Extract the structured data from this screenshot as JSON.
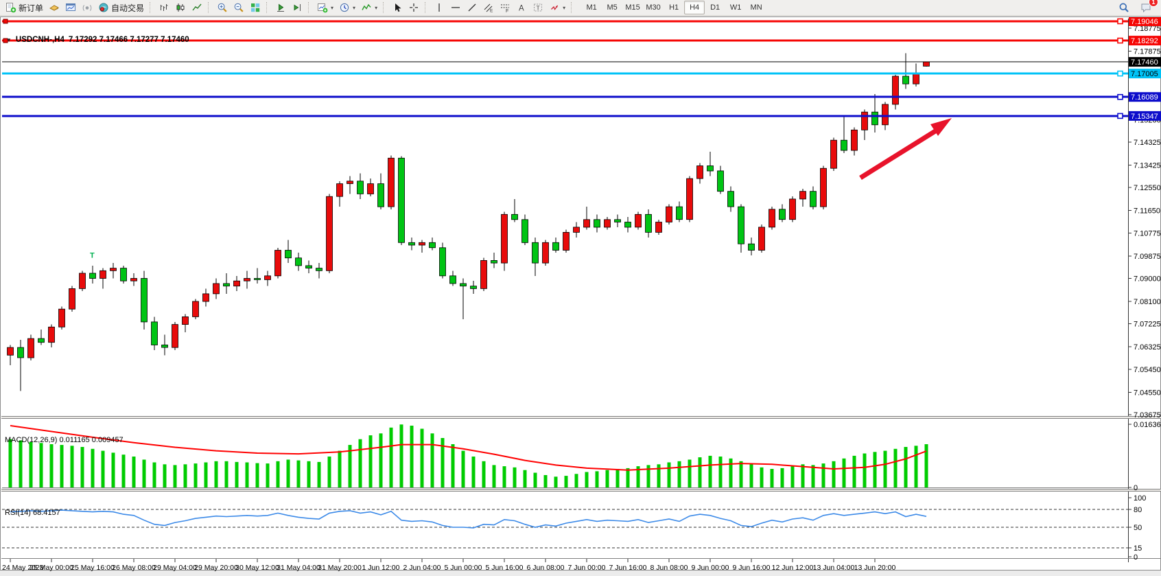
{
  "toolbar": {
    "groups": [
      {
        "name": "trade",
        "items": [
          {
            "name": "new-order",
            "icon": "new-order",
            "label": "新订单"
          },
          {
            "name": "profiles",
            "icon": "profiles"
          },
          {
            "name": "chart-window",
            "icon": "chart-window"
          },
          {
            "name": "signals",
            "icon": "signals"
          },
          {
            "name": "auto-trading",
            "icon": "auto-trading",
            "label": "自动交易"
          }
        ]
      },
      {
        "name": "chart-type",
        "items": [
          {
            "name": "bar-chart",
            "icon": "bar-chart"
          },
          {
            "name": "candlestick-chart",
            "icon": "candlestick-chart"
          },
          {
            "name": "line-chart",
            "icon": "line-chart"
          }
        ]
      },
      {
        "name": "zoom",
        "items": [
          {
            "name": "zoom-in",
            "icon": "zoom-in"
          },
          {
            "name": "zoom-out",
            "icon": "zoom-out"
          },
          {
            "name": "tile-windows",
            "icon": "tile-windows"
          }
        ]
      },
      {
        "name": "scroll",
        "items": [
          {
            "name": "auto-scroll",
            "icon": "auto-scroll"
          },
          {
            "name": "chart-shift",
            "icon": "chart-shift"
          }
        ]
      },
      {
        "name": "new-objects",
        "items": [
          {
            "name": "new-chart",
            "icon": "new-chart",
            "dropdown": true
          },
          {
            "name": "period-selector",
            "icon": "periods",
            "dropdown": true
          },
          {
            "name": "indicators-list",
            "icon": "indicators",
            "dropdown": true
          }
        ]
      },
      {
        "name": "pointer",
        "items": [
          {
            "name": "cursor",
            "icon": "cursor"
          },
          {
            "name": "crosshair",
            "icon": "crosshair"
          }
        ]
      },
      {
        "name": "drawing",
        "items": [
          {
            "name": "vertical-line",
            "icon": "vline"
          },
          {
            "name": "horizontal-line",
            "icon": "hline"
          },
          {
            "name": "trend-line",
            "icon": "trendline"
          },
          {
            "name": "equidistant-channel",
            "icon": "channel"
          },
          {
            "name": "fibonacci-retracement",
            "icon": "fibonacci"
          },
          {
            "name": "text",
            "icon": "text"
          },
          {
            "name": "text-label",
            "icon": "text-label"
          },
          {
            "name": "arrows",
            "icon": "arrows",
            "dropdown": true
          }
        ]
      }
    ],
    "timeframes": [
      "M1",
      "M5",
      "M15",
      "M30",
      "H1",
      "H4",
      "D1",
      "W1",
      "MN"
    ],
    "active_timeframe": "H4",
    "notification_badge": "1"
  },
  "chart": {
    "title_symbol": "USDCNH-,H4",
    "title_ohlc": "7.17292 7.17466 7.17277 7.17460",
    "bid_price": "7.17460",
    "up_color": "#e80b0b",
    "down_color": "#00c414",
    "hlines": [
      {
        "price": 7.19046,
        "label": "7.19046",
        "color": "#f60604",
        "text_color": "#ffffff",
        "handles": "both"
      },
      {
        "price": 7.18292,
        "label": "7.18292",
        "color": "#f60604",
        "text_color": "#ffffff",
        "handles": "both"
      },
      {
        "price": 7.17005,
        "label": "7.17005",
        "color": "#00c3f7",
        "text_color": "#000000",
        "handles": "right"
      },
      {
        "price": 7.16089,
        "label": "7.16089",
        "color": "#0d0dcb",
        "text_color": "#ffffff",
        "handles": "right"
      },
      {
        "price": 7.15347,
        "label": "7.15347",
        "color": "#0d0dcb",
        "text_color": "#ffffff",
        "handles": "right"
      }
    ],
    "price_ticks": [
      "7.18775",
      "7.17875",
      "7.15200",
      "7.14325",
      "7.13425",
      "7.12550",
      "7.11650",
      "7.10775",
      "7.09875",
      "7.09000",
      "7.08100",
      "7.07225",
      "7.06325",
      "7.05450",
      "7.04550",
      "7.03675"
    ],
    "time_ticks": [
      "24 May 2023",
      "25 May 00:00",
      "25 May 16:00",
      "26 May 08:00",
      "29 May 04:00",
      "29 May 20:00",
      "30 May 12:00",
      "31 May 04:00",
      "31 May 20:00",
      "1 Jun 12:00",
      "2 Jun 04:00",
      "5 Jun 00:00",
      "5 Jun 16:00",
      "6 Jun 08:00",
      "7 Jun 00:00",
      "7 Jun 16:00",
      "8 Jun 08:00",
      "9 Jun 00:00",
      "9 Jun 16:00",
      "12 Jun 12:00",
      "13 Jun 04:00",
      "13 Jun 20:00"
    ],
    "annotations": {
      "t_marker": {
        "text": "T",
        "color": "#00b050"
      },
      "trend_arrow": {
        "color": "#e8132b",
        "direction": "up-right",
        "points_to_price": 7.15347
      }
    }
  },
  "chart_data": {
    "type": "candlestick",
    "symbol": "USDCNH-",
    "timeframe": "H4",
    "color_convention": "red = bullish, green = bearish",
    "current_bar": {
      "open": "7.17292",
      "high": "7.17466",
      "low": "7.17277",
      "close": "7.17460"
    },
    "candles": [
      [
        7.06,
        7.064,
        7.056,
        7.063
      ],
      [
        7.063,
        7.066,
        7.046,
        7.059
      ],
      [
        7.059,
        7.068,
        7.058,
        7.0665
      ],
      [
        7.0665,
        7.07,
        7.064,
        7.065
      ],
      [
        7.065,
        7.072,
        7.063,
        7.071
      ],
      [
        7.071,
        7.079,
        7.07,
        7.078
      ],
      [
        7.078,
        7.087,
        7.077,
        7.086
      ],
      [
        7.086,
        7.093,
        7.085,
        7.092
      ],
      [
        7.092,
        7.095,
        7.088,
        7.09
      ],
      [
        7.09,
        7.094,
        7.086,
        7.093
      ],
      [
        7.093,
        7.096,
        7.09,
        7.094
      ],
      [
        7.094,
        7.095,
        7.088,
        7.089
      ],
      [
        7.089,
        7.092,
        7.087,
        7.09
      ],
      [
        7.09,
        7.093,
        7.07,
        7.073
      ],
      [
        7.073,
        7.075,
        7.062,
        7.064
      ],
      [
        7.064,
        7.068,
        7.06,
        7.063
      ],
      [
        7.063,
        7.073,
        7.062,
        7.072
      ],
      [
        7.072,
        7.076,
        7.069,
        7.075
      ],
      [
        7.075,
        7.082,
        7.074,
        7.081
      ],
      [
        7.081,
        7.086,
        7.079,
        7.084
      ],
      [
        7.084,
        7.09,
        7.082,
        7.088
      ],
      [
        7.088,
        7.092,
        7.084,
        7.087
      ],
      [
        7.087,
        7.091,
        7.085,
        7.089
      ],
      [
        7.089,
        7.093,
        7.086,
        7.09
      ],
      [
        7.09,
        7.094,
        7.088,
        7.0895
      ],
      [
        7.0895,
        7.093,
        7.087,
        7.091
      ],
      [
        7.091,
        7.102,
        7.09,
        7.101
      ],
      [
        7.101,
        7.105,
        7.096,
        7.098
      ],
      [
        7.098,
        7.1,
        7.093,
        7.095
      ],
      [
        7.095,
        7.097,
        7.092,
        7.094
      ],
      [
        7.094,
        7.096,
        7.09,
        7.093
      ],
      [
        7.093,
        7.123,
        7.092,
        7.122
      ],
      [
        7.122,
        7.128,
        7.118,
        7.127
      ],
      [
        7.127,
        7.13,
        7.123,
        7.128
      ],
      [
        7.128,
        7.131,
        7.121,
        7.123
      ],
      [
        7.123,
        7.129,
        7.122,
        7.127
      ],
      [
        7.127,
        7.131,
        7.117,
        7.118
      ],
      [
        7.118,
        7.138,
        7.117,
        7.137
      ],
      [
        7.137,
        7.1378,
        7.103,
        7.104
      ],
      [
        7.104,
        7.106,
        7.101,
        7.103
      ],
      [
        7.103,
        7.105,
        7.1,
        7.104
      ],
      [
        7.104,
        7.106,
        7.101,
        7.102
      ],
      [
        7.102,
        7.104,
        7.09,
        7.091
      ],
      [
        7.091,
        7.093,
        7.087,
        7.088
      ],
      [
        7.088,
        7.09,
        7.074,
        7.087
      ],
      [
        7.087,
        7.089,
        7.084,
        7.086
      ],
      [
        7.086,
        7.098,
        7.085,
        7.097
      ],
      [
        7.097,
        7.1,
        7.094,
        7.096
      ],
      [
        7.096,
        7.116,
        7.093,
        7.115
      ],
      [
        7.115,
        7.121,
        7.112,
        7.113
      ],
      [
        7.113,
        7.115,
        7.103,
        7.104
      ],
      [
        7.104,
        7.106,
        7.091,
        7.096
      ],
      [
        7.096,
        7.105,
        7.095,
        7.104
      ],
      [
        7.104,
        7.106,
        7.1,
        7.101
      ],
      [
        7.101,
        7.109,
        7.1,
        7.108
      ],
      [
        7.108,
        7.112,
        7.106,
        7.11
      ],
      [
        7.11,
        7.118,
        7.109,
        7.113
      ],
      [
        7.113,
        7.115,
        7.108,
        7.11
      ],
      [
        7.11,
        7.114,
        7.109,
        7.113
      ],
      [
        7.113,
        7.115,
        7.11,
        7.112
      ],
      [
        7.112,
        7.114,
        7.108,
        7.11
      ],
      [
        7.11,
        7.116,
        7.109,
        7.115
      ],
      [
        7.115,
        7.117,
        7.106,
        7.108
      ],
      [
        7.108,
        7.113,
        7.107,
        7.112
      ],
      [
        7.112,
        7.119,
        7.111,
        7.118
      ],
      [
        7.118,
        7.12,
        7.112,
        7.113
      ],
      [
        7.113,
        7.13,
        7.112,
        7.129
      ],
      [
        7.129,
        7.135,
        7.127,
        7.134
      ],
      [
        7.134,
        7.1395,
        7.13,
        7.132
      ],
      [
        7.132,
        7.134,
        7.123,
        7.124
      ],
      [
        7.124,
        7.126,
        7.116,
        7.118
      ],
      [
        7.118,
        7.119,
        7.1,
        7.1035
      ],
      [
        7.1035,
        7.106,
        7.099,
        7.101
      ],
      [
        7.101,
        7.111,
        7.1,
        7.11
      ],
      [
        7.11,
        7.118,
        7.109,
        7.117
      ],
      [
        7.117,
        7.119,
        7.112,
        7.113
      ],
      [
        7.113,
        7.122,
        7.112,
        7.121
      ],
      [
        7.121,
        7.125,
        7.118,
        7.124
      ],
      [
        7.124,
        7.126,
        7.117,
        7.118
      ],
      [
        7.118,
        7.134,
        7.117,
        7.133
      ],
      [
        7.133,
        7.145,
        7.132,
        7.144
      ],
      [
        7.144,
        7.153,
        7.139,
        7.14
      ],
      [
        7.14,
        7.149,
        7.138,
        7.148
      ],
      [
        7.148,
        7.156,
        7.144,
        7.155
      ],
      [
        7.155,
        7.162,
        7.147,
        7.15
      ],
      [
        7.15,
        7.159,
        7.148,
        7.158
      ],
      [
        7.158,
        7.1695,
        7.156,
        7.169
      ],
      [
        7.169,
        7.178,
        7.164,
        7.166
      ],
      [
        7.166,
        7.174,
        7.165,
        7.1702
      ],
      [
        7.17292,
        7.17466,
        7.17277,
        7.1746
      ]
    ]
  },
  "macd": {
    "label": "MACD(12,26,9)",
    "value_main": "0.011165",
    "value_signal": "0.009457",
    "axis_max": "0.016366",
    "axis_min": "0",
    "histogram_color": "#00cc00",
    "signal_color": "#ff0000",
    "histogram": [
      0.0125,
      0.0122,
      0.0118,
      0.0115,
      0.0112,
      0.011,
      0.0108,
      0.0105,
      0.01,
      0.0095,
      0.009,
      0.0085,
      0.008,
      0.0072,
      0.0065,
      0.006,
      0.0058,
      0.006,
      0.0062,
      0.0065,
      0.0068,
      0.0068,
      0.0066,
      0.0065,
      0.0063,
      0.0062,
      0.0068,
      0.0072,
      0.007,
      0.0068,
      0.0066,
      0.008,
      0.0095,
      0.011,
      0.0125,
      0.0135,
      0.014,
      0.0155,
      0.0163,
      0.016,
      0.0152,
      0.014,
      0.0128,
      0.0112,
      0.0095,
      0.008,
      0.0068,
      0.0058,
      0.0055,
      0.0052,
      0.0045,
      0.0038,
      0.0032,
      0.0028,
      0.003,
      0.0035,
      0.004,
      0.0042,
      0.0045,
      0.0048,
      0.005,
      0.0055,
      0.0058,
      0.006,
      0.0065,
      0.0068,
      0.0072,
      0.0078,
      0.0082,
      0.008,
      0.0075,
      0.0068,
      0.006,
      0.0052,
      0.0048,
      0.005,
      0.0055,
      0.006,
      0.0058,
      0.0062,
      0.0068,
      0.0075,
      0.0082,
      0.0088,
      0.0092,
      0.0095,
      0.01,
      0.0105,
      0.0108,
      0.0112
    ],
    "signal_anchors": [
      [
        0,
        0.016
      ],
      [
        4,
        0.0145
      ],
      [
        8,
        0.013
      ],
      [
        12,
        0.0116
      ],
      [
        16,
        0.0104
      ],
      [
        20,
        0.0095
      ],
      [
        24,
        0.0089
      ],
      [
        28,
        0.0087
      ],
      [
        32,
        0.0092
      ],
      [
        36,
        0.0104
      ],
      [
        38,
        0.0111
      ],
      [
        41,
        0.0111
      ],
      [
        44,
        0.01
      ],
      [
        47,
        0.0086
      ],
      [
        50,
        0.007
      ],
      [
        53,
        0.0058
      ],
      [
        56,
        0.005
      ],
      [
        60,
        0.0045
      ],
      [
        64,
        0.005
      ],
      [
        68,
        0.0058
      ],
      [
        71,
        0.0062
      ],
      [
        74,
        0.006
      ],
      [
        77,
        0.0054
      ],
      [
        80,
        0.0048
      ],
      [
        83,
        0.0052
      ],
      [
        85,
        0.006
      ],
      [
        87,
        0.0074
      ],
      [
        89,
        0.0094
      ]
    ]
  },
  "rsi": {
    "label": "RSI(14)",
    "value": "68.4157",
    "line_color": "#3c8ae8",
    "levels": [
      "100",
      "80",
      "50",
      "15",
      "0"
    ],
    "dashed_levels": [
      80,
      50,
      15
    ],
    "values": [
      76,
      77,
      78,
      77,
      78,
      79,
      78,
      77,
      76,
      77,
      76,
      72,
      70,
      62,
      55,
      53,
      58,
      61,
      65,
      67,
      69,
      68,
      69,
      70,
      69,
      70,
      74,
      70,
      67,
      65,
      64,
      74,
      77,
      78,
      74,
      76,
      71,
      77,
      62,
      60,
      61,
      59,
      53,
      50,
      50,
      49,
      55,
      54,
      63,
      61,
      55,
      50,
      54,
      52,
      57,
      60,
      63,
      60,
      62,
      61,
      60,
      63,
      58,
      61,
      64,
      60,
      69,
      72,
      70,
      65,
      61,
      53,
      51,
      57,
      62,
      59,
      64,
      66,
      62,
      70,
      73,
      70,
      72,
      74,
      76,
      73,
      76,
      68,
      72,
      68.4
    ]
  }
}
